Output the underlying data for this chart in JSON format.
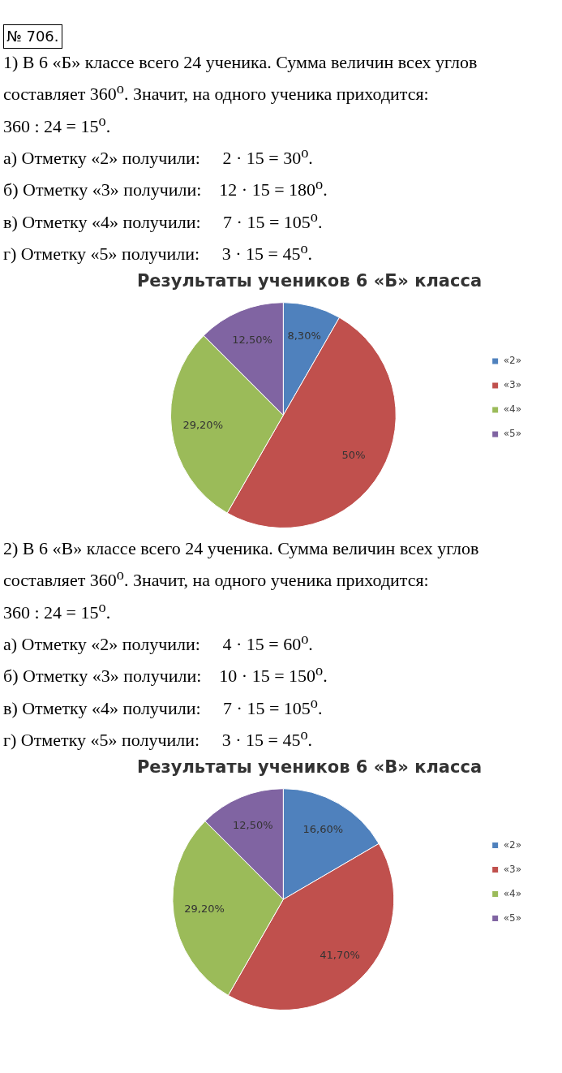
{
  "chart_data": [
    {
      "type": "pie",
      "title": "Результаты учеников 6 «Б» класса",
      "annotations": [
        "№ 706.",
        "1) В 6 «Б» классе всего 24 ученика. Сумма величин всех углов составляет 360$^{o}$. Значит, на одного ученика приходится:",
        "360 : 24 = 15$^{o}$.",
        "а) Отметку «2» получили:     2 · 15 = 30$^{o}$.",
        "б) Отметку «3» получили:    12 · 15 = 180$^{o}$.",
        "в) Отметку «4» получили:     7 · 15 = 105$^{o}$.",
        "г) Отметку «5» получили:     3 · 15 = 45$^{o}$."
      ],
      "categories": [
        "«2»",
        "«3»",
        "«4»",
        "«5»"
      ],
      "values": [
        8.3,
        50,
        29.2,
        12.5
      ],
      "value_labels": [
        "8,30%",
        "50%",
        "29,20%",
        "12,50%"
      ],
      "colors": [
        "#4f81bd",
        "#c0504d",
        "#9bbb59",
        "#8064a2"
      ],
      "legend": "right"
    },
    {
      "type": "pie",
      "title": "Результаты учеников 6 «В» класса",
      "annotations": [
        "2) В 6 «В» классе всего 24 ученика. Сумма величин всех углов составляет 360$^{o}$. Значит, на одного ученика приходится:",
        "360 : 24 = 15$^{o}$.",
        "а) Отметку «2» получили:     4 · 15 = 60$^{o}$.",
        "б) Отметку «3» получили:    10 · 15 = 150$^{o}$.",
        "в) Отметку «4» получили:     7 · 15 = 105$^{o}$.",
        "г) Отметку «5» получили:     3 · 15 = 45$^{o}$."
      ],
      "categories": [
        "«2»",
        "«3»",
        "«4»",
        "«5»"
      ],
      "values": [
        16.6,
        41.7,
        29.2,
        12.5
      ],
      "value_labels": [
        "16,60%",
        "41,70%",
        "29,20%",
        "12,50%"
      ],
      "colors": [
        "#4f81bd",
        "#c0504d",
        "#9bbb59",
        "#8064a2"
      ],
      "legend": "right"
    }
  ]
}
